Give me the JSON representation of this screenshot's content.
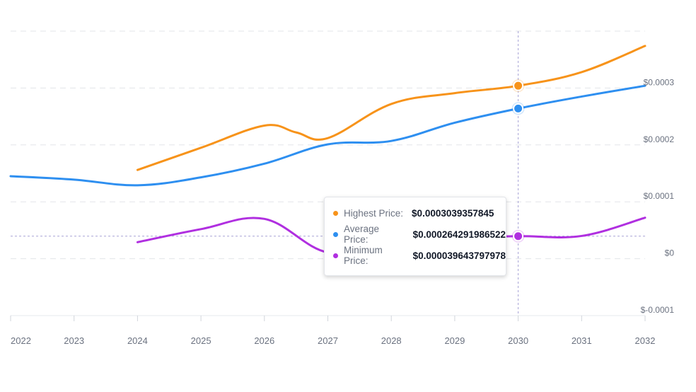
{
  "chart_data": {
    "type": "line",
    "x": [
      2022,
      2023,
      2024,
      2025,
      2026,
      2027,
      2028,
      2029,
      2030,
      2031,
      2032
    ],
    "x_tick_labels": [
      "2022",
      "2023",
      "2024",
      "2025",
      "2026",
      "2027",
      "2028",
      "2029",
      "2030",
      "2031",
      "2032"
    ],
    "y_tick_labels": [
      "$0.0003",
      "$0.0002",
      "$0.0001",
      "$0",
      "$-0.0001"
    ],
    "ylim": [
      -0.0001,
      0.0004
    ],
    "grid": true,
    "series": [
      {
        "key": "highest",
        "color": "#f7931a",
        "points": [
          [
            2024,
            0.000156
          ],
          [
            2025,
            0.000195
          ],
          [
            2026,
            0.000234
          ],
          [
            2026.5,
            0.000222
          ],
          [
            2027,
            0.000212
          ],
          [
            2028,
            0.000272
          ],
          [
            2029,
            0.000291
          ],
          [
            2030,
            0.000304
          ],
          [
            2031,
            0.000328
          ],
          [
            2032,
            0.000374
          ]
        ]
      },
      {
        "key": "average",
        "color": "#2e8ff0",
        "points": [
          [
            2022,
            0.000145
          ],
          [
            2023,
            0.000139
          ],
          [
            2024,
            0.000129
          ],
          [
            2025,
            0.000143
          ],
          [
            2026,
            0.000167
          ],
          [
            2027,
            0.000201
          ],
          [
            2028,
            0.000207
          ],
          [
            2029,
            0.000239
          ],
          [
            2030,
            0.000264
          ],
          [
            2031,
            0.000285
          ],
          [
            2032,
            0.000304
          ]
        ]
      },
      {
        "key": "minimum",
        "color": "#b02fe0",
        "points": [
          [
            2024,
            2.9e-05
          ],
          [
            2025,
            5.2e-05
          ],
          [
            2026,
            7e-05
          ],
          [
            2027,
            1.1e-05
          ],
          [
            2028,
            2.8e-05
          ],
          [
            2029,
            3.6e-05
          ],
          [
            2030,
            3.96e-05
          ],
          [
            2031,
            4e-05
          ],
          [
            2032,
            7.2e-05
          ]
        ]
      }
    ],
    "tooltip": {
      "x": 2030,
      "rows": [
        {
          "label": "Highest Price:",
          "value": "$0.0003039357845",
          "color": "#f7931a"
        },
        {
          "label": "Average Price:",
          "value": "$0.000264291986522",
          "color": "#2e8ff0"
        },
        {
          "label": "Minimum Price:",
          "value": "$0.000039643797978",
          "color": "#b02fe0"
        }
      ]
    }
  }
}
